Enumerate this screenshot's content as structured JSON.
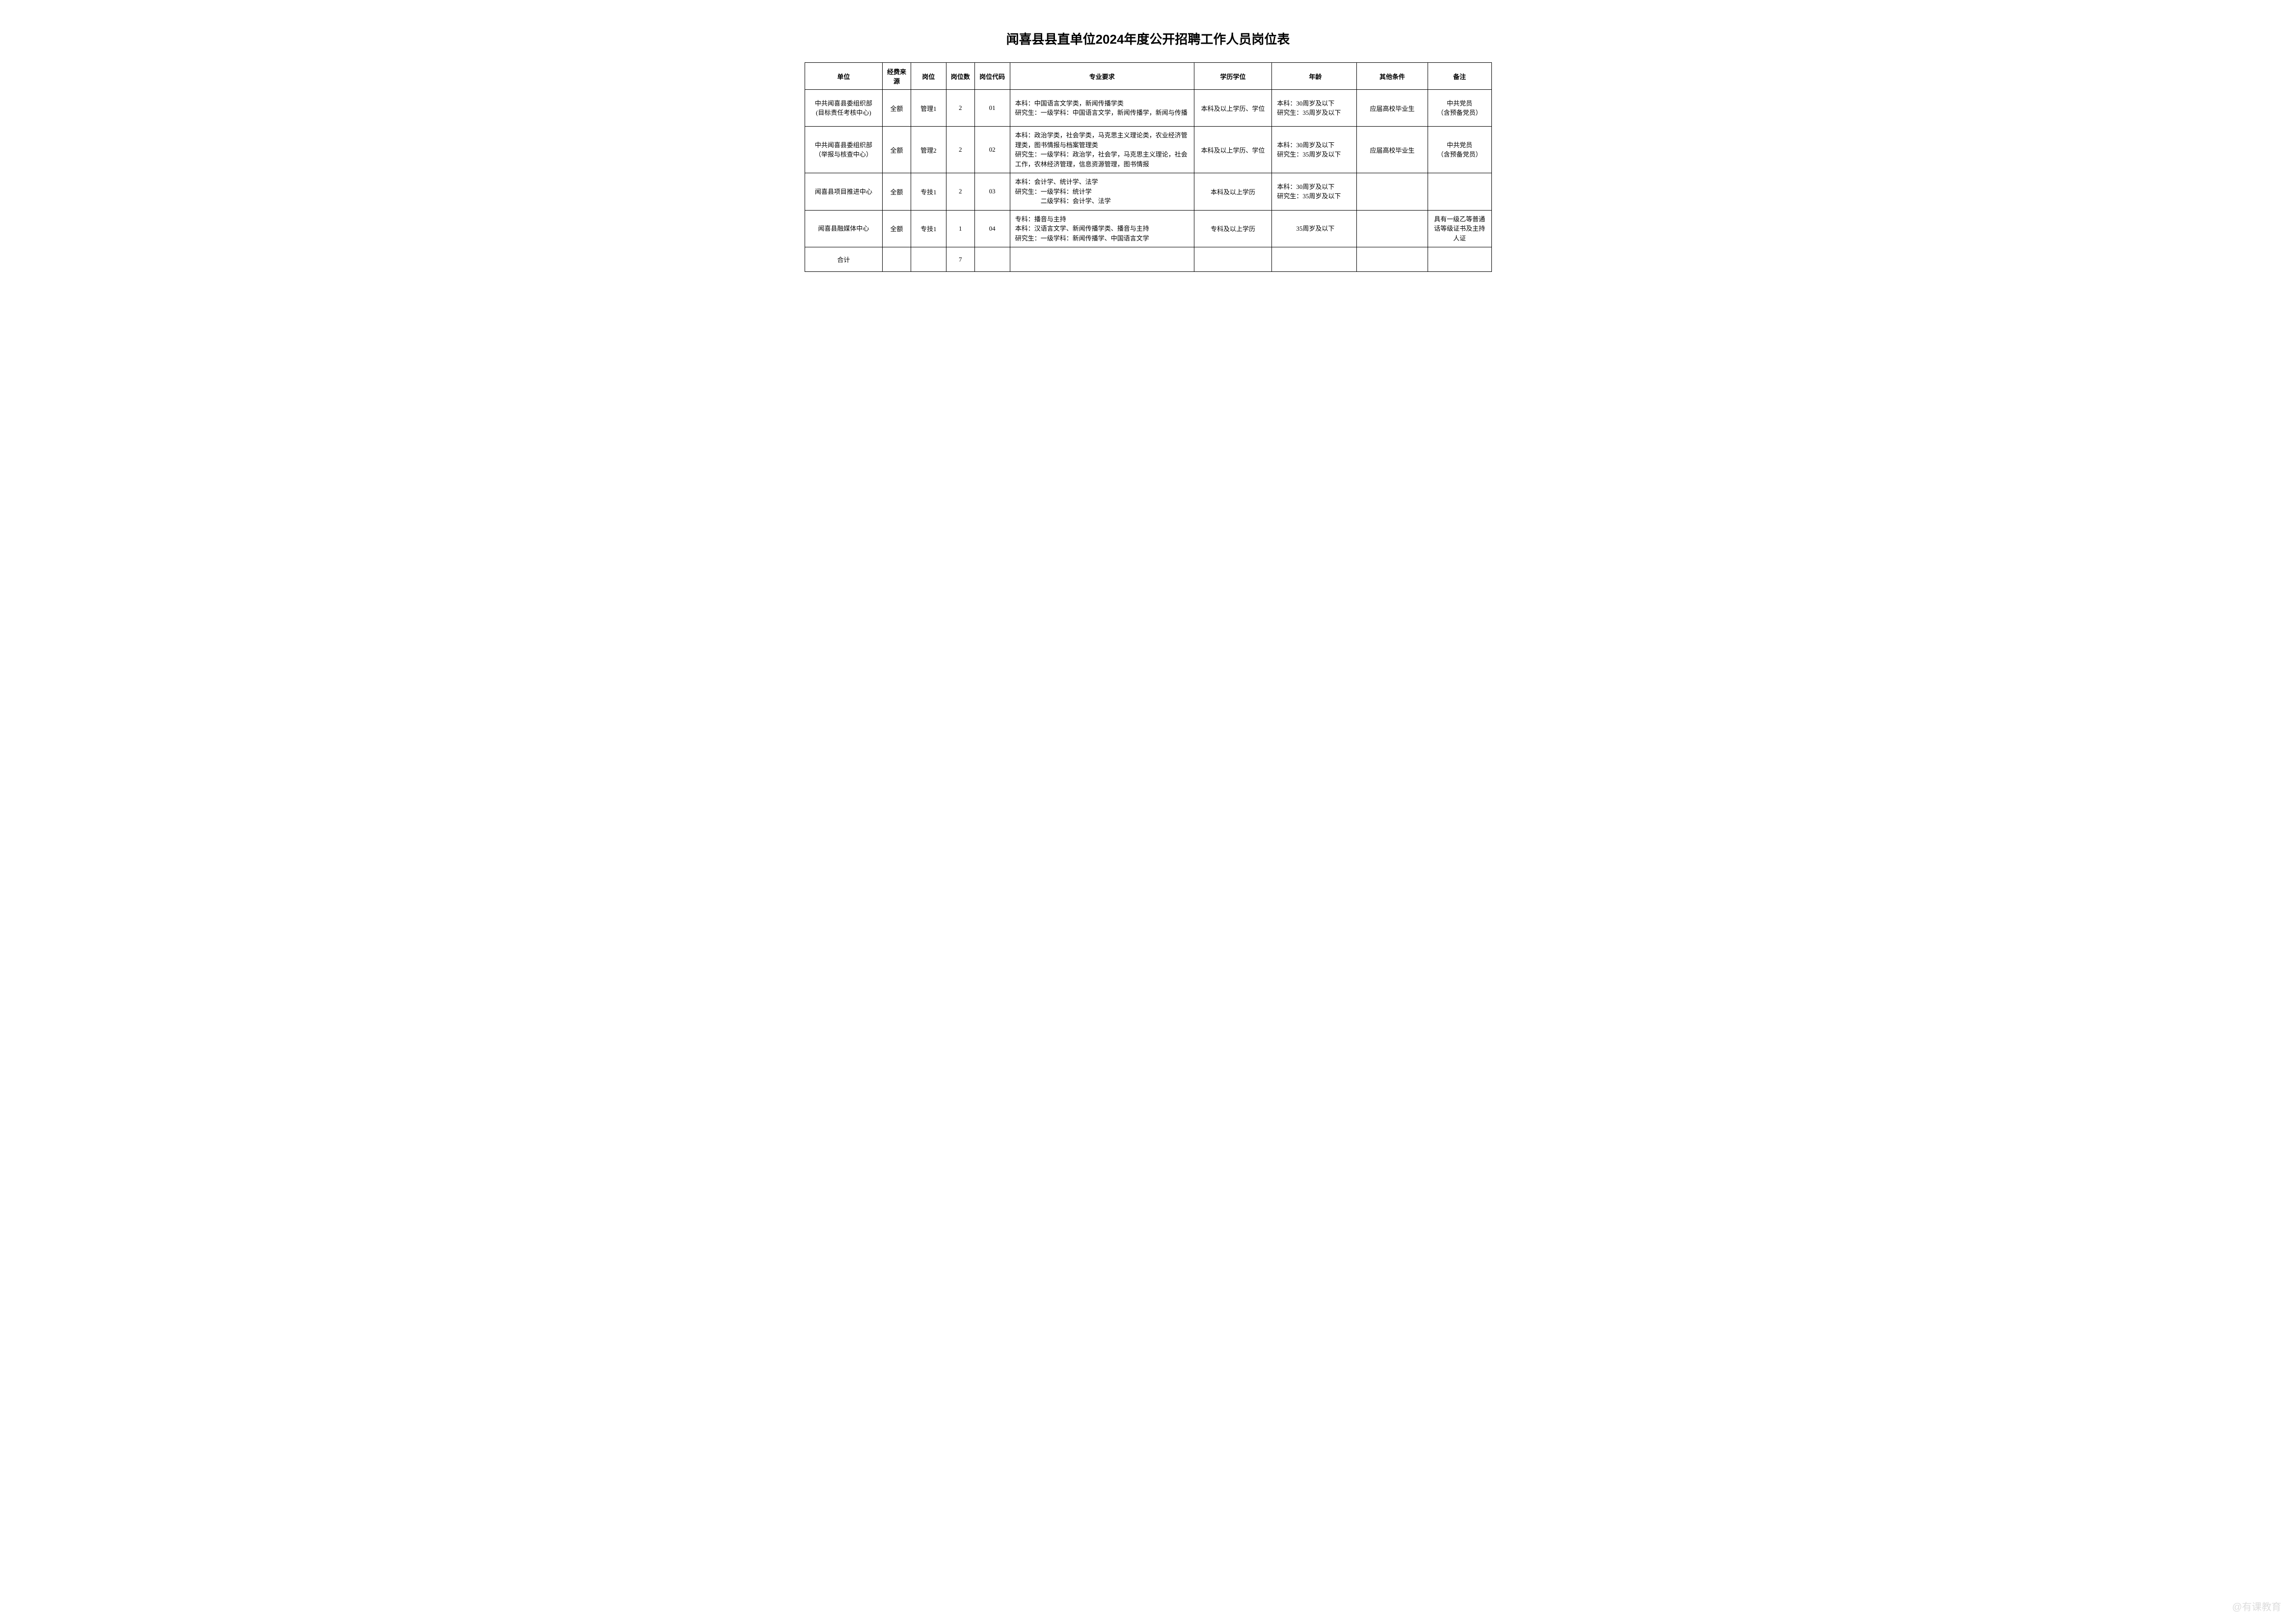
{
  "title": "闻喜县县直单位2024年度公开招聘工作人员岗位表",
  "headers": {
    "unit": "单位",
    "fund": "经费来源",
    "post": "岗位",
    "count": "岗位数",
    "code": "岗位代码",
    "major": "专业要求",
    "edu": "学历学位",
    "age": "年龄",
    "other": "其他条件",
    "note": "备注"
  },
  "rows": [
    {
      "unit": "中共闻喜县委组织部\n(目标责任考核中心)",
      "fund": "全额",
      "post": "管理1",
      "count": "2",
      "code": "01",
      "major": "本科：中国语言文学类，新闻传播学类\n研究生：一级学科：中国语言文学，新闻传播学，新闻与传播",
      "edu": "本科及以上学历、学位",
      "age": "本科：30周岁及以下\n研究生：35周岁及以下",
      "other": "应届高校毕业生",
      "note": "中共党员\n（含预备党员）"
    },
    {
      "unit": "中共闻喜县委组织部\n（举报与核查中心）",
      "fund": "全额",
      "post": "管理2",
      "count": "2",
      "code": "02",
      "major": "本科：政治学类，社会学类，马克思主义理论类，农业经济管理类，图书情报与档案管理类\n研究生：一级学科：政治学，社会学，马克思主义理论，社会工作，农林经济管理，信息资源管理，图书情报",
      "edu": "本科及以上学历、学位",
      "age": "本科：30周岁及以下\n研究生：35周岁及以下",
      "other": "应届高校毕业生",
      "note": "中共党员\n（含预备党员）"
    },
    {
      "unit": "闻喜县项目推进中心",
      "fund": "全额",
      "post": "专技1",
      "count": "2",
      "code": "03",
      "major": "本科：会计学、统计学、法学\n研究生：一级学科：统计学\n　　　　二级学科：会计学、法学",
      "edu": "本科及以上学历",
      "age": "本科：30周岁及以下\n研究生：35周岁及以下",
      "other": "",
      "note": ""
    },
    {
      "unit": "闻喜县融媒体中心",
      "fund": "全额",
      "post": "专技1",
      "count": "1",
      "code": "04",
      "major": "专科：播音与主持\n本科：汉语言文学、新闻传播学类、播音与主持\n研究生：一级学科：新闻传播学、中国语言文学",
      "edu": "专科及以上学历",
      "age": "35周岁及以下",
      "other": "",
      "note": "具有一级乙等普通话等级证书及主持人证"
    }
  ],
  "total": {
    "label": "合计",
    "count": "7"
  },
  "watermark": "@有课教育",
  "styling": {
    "title_fontsize": 26,
    "body_fontsize": 13,
    "border_color": "#000000",
    "background_color": "#ffffff",
    "text_color": "#000000",
    "watermark_color": "#dddddd"
  }
}
